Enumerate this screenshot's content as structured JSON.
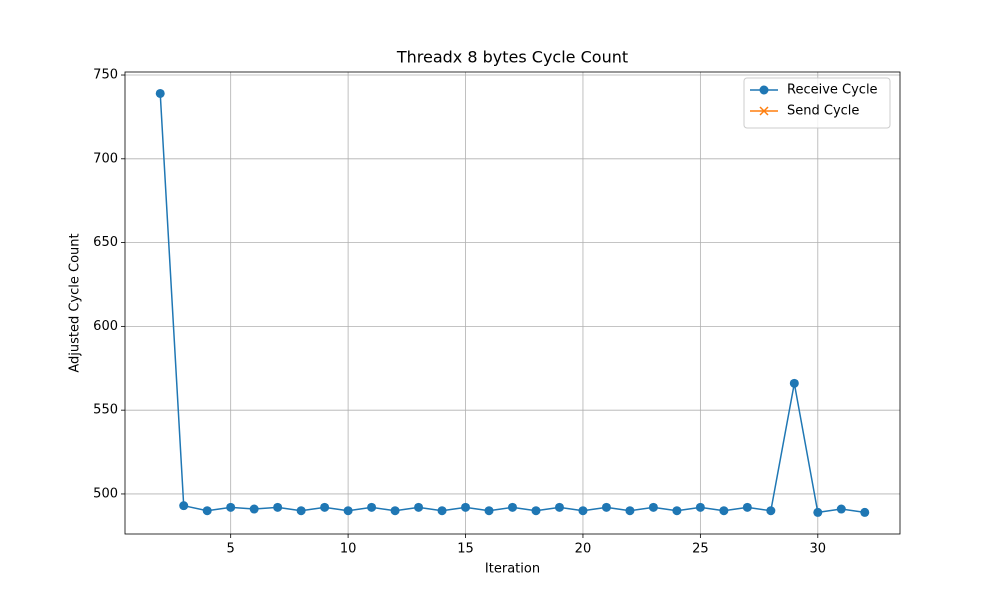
{
  "chart_data": {
    "type": "line",
    "title": "Threadx 8 bytes Cycle Count",
    "x_label": "Iteration",
    "y_label": "Adjusted Cycle Count",
    "x": [
      2,
      3,
      4,
      5,
      6,
      7,
      8,
      9,
      10,
      11,
      12,
      13,
      14,
      15,
      16,
      17,
      18,
      19,
      20,
      21,
      22,
      23,
      24,
      25,
      26,
      27,
      28,
      29,
      30,
      31,
      32
    ],
    "series": [
      {
        "name": "Receive Cycle",
        "color": "#1f77b4",
        "marker": "o",
        "values": [
          739,
          493,
          490,
          492,
          491,
          492,
          490,
          492,
          490,
          492,
          490,
          492,
          490,
          492,
          490,
          492,
          490,
          492,
          490,
          492,
          490,
          492,
          490,
          492,
          490,
          492,
          490,
          566,
          489,
          491,
          489
        ]
      },
      {
        "name": "Send Cycle",
        "color": "#ff7f0e",
        "marker": "x",
        "values": [
          null,
          null,
          null,
          null,
          null,
          null,
          null,
          null,
          null,
          null,
          null,
          null,
          null,
          null,
          null,
          null,
          null,
          null,
          null,
          null,
          null,
          null,
          null,
          null,
          null,
          null,
          null,
          null,
          null,
          null,
          null
        ]
      }
    ],
    "xlim": [
      0.5,
      33.5
    ],
    "xticks": [
      5,
      10,
      15,
      20,
      25,
      30
    ],
    "ylim": [
      476.1,
      751.8
    ],
    "yticks": [
      500,
      550,
      600,
      650,
      700,
      750
    ],
    "grid": true,
    "legend": "upper right"
  }
}
